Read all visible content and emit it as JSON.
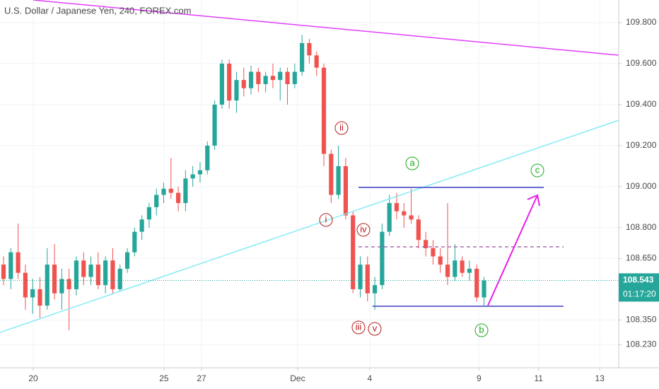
{
  "chart_data": {
    "type": "candlestick",
    "title": "U.S. Dollar / Japanese Yen, 240, FOREX.com",
    "up_color": "#26a69a",
    "down_color": "#ef5350",
    "open": [
      108.62,
      108.55,
      108.68,
      108.58,
      108.46,
      108.5,
      108.42,
      108.62,
      108.48,
      108.55,
      108.5,
      108.64,
      108.56,
      108.62,
      108.52,
      108.64,
      108.5,
      108.6,
      108.68,
      108.78,
      108.84,
      108.9,
      108.96,
      108.99,
      108.97,
      108.92,
      109.04,
      109.06,
      109.08,
      109.2,
      109.4,
      109.6,
      109.42,
      109.52,
      109.48,
      109.56,
      109.5,
      109.54,
      109.52,
      109.56,
      109.5,
      109.56,
      109.7,
      109.64,
      109.58,
      109.16,
      108.96,
      109.1,
      108.86,
      108.5,
      108.62,
      108.48,
      108.52,
      108.78,
      108.92,
      108.88,
      108.86,
      108.84,
      108.74,
      108.7,
      108.66,
      108.62,
      108.56,
      108.64,
      108.58,
      108.6,
      108.46
    ],
    "high": [
      108.66,
      108.7,
      108.82,
      108.62,
      108.55,
      108.56,
      108.7,
      108.72,
      108.6,
      108.6,
      108.66,
      108.68,
      108.66,
      108.68,
      108.66,
      108.7,
      108.62,
      108.7,
      108.8,
      108.86,
      108.92,
      108.99,
      109.02,
      109.14,
      109.0,
      109.08,
      109.1,
      109.12,
      109.22,
      109.42,
      109.62,
      109.62,
      109.56,
      109.58,
      109.59,
      109.58,
      109.56,
      109.6,
      109.58,
      109.58,
      109.6,
      109.74,
      109.72,
      109.66,
      109.6,
      109.18,
      109.2,
      109.14,
      108.88,
      108.66,
      108.66,
      108.56,
      108.82,
      108.96,
      108.97,
      108.92,
      108.99,
      108.86,
      108.78,
      108.74,
      108.7,
      108.92,
      108.72,
      108.66,
      108.64,
      108.62,
      108.56
    ],
    "low": [
      108.52,
      108.5,
      108.55,
      108.4,
      108.38,
      108.36,
      108.4,
      108.45,
      108.4,
      108.3,
      108.47,
      108.52,
      108.52,
      108.5,
      108.48,
      108.48,
      108.49,
      108.58,
      108.66,
      108.74,
      108.8,
      108.86,
      108.92,
      108.94,
      108.88,
      108.88,
      109.0,
      109.02,
      109.06,
      109.18,
      109.38,
      109.38,
      109.36,
      109.44,
      109.45,
      109.46,
      109.46,
      109.48,
      109.42,
      109.4,
      109.48,
      109.54,
      109.6,
      109.54,
      109.1,
      108.92,
      108.94,
      108.84,
      108.48,
      108.46,
      108.44,
      108.4,
      108.5,
      108.76,
      108.84,
      108.8,
      108.82,
      108.7,
      108.66,
      108.62,
      108.58,
      108.52,
      108.54,
      108.56,
      108.54,
      108.44,
      108.42
    ],
    "close": [
      108.55,
      108.68,
      108.58,
      108.46,
      108.5,
      108.42,
      108.62,
      108.48,
      108.55,
      108.5,
      108.64,
      108.56,
      108.62,
      108.52,
      108.64,
      108.5,
      108.6,
      108.68,
      108.78,
      108.84,
      108.9,
      108.96,
      108.99,
      108.97,
      108.92,
      109.04,
      109.06,
      109.08,
      109.2,
      109.4,
      109.6,
      109.42,
      109.52,
      109.48,
      109.56,
      109.5,
      109.54,
      109.52,
      109.56,
      109.5,
      109.56,
      109.7,
      109.64,
      109.58,
      109.16,
      108.96,
      109.1,
      108.86,
      108.5,
      108.62,
      108.48,
      108.52,
      108.78,
      108.92,
      108.88,
      108.86,
      108.84,
      108.74,
      108.7,
      108.66,
      108.62,
      108.56,
      108.64,
      108.58,
      108.6,
      108.46,
      108.543
    ],
    "xlim": [
      -0.485,
      84.5
    ],
    "xticks": [
      {
        "value": 4.08,
        "label": "20"
      },
      {
        "value": 22.04,
        "label": "25"
      },
      {
        "value": 27.2,
        "label": "27"
      },
      {
        "value": 40.4,
        "label": "Dec"
      },
      {
        "value": 50.3,
        "label": "4"
      },
      {
        "value": 65.3,
        "label": "9"
      },
      {
        "value": 73.5,
        "label": "11"
      },
      {
        "value": 81.9,
        "label": "13"
      }
    ],
    "ylim": [
      108.117,
      109.91
    ],
    "yticks": [
      {
        "value": 109.8,
        "label": "109.800"
      },
      {
        "value": 109.6,
        "label": "109.600"
      },
      {
        "value": 109.4,
        "label": "109.400"
      },
      {
        "value": 109.2,
        "label": "109.200"
      },
      {
        "value": 109.0,
        "label": "109.000"
      },
      {
        "value": 108.8,
        "label": "108.800"
      },
      {
        "value": 108.65,
        "label": "108.650"
      },
      {
        "value": 108.35,
        "label": "108.350"
      },
      {
        "value": 108.23,
        "label": "108.230"
      }
    ],
    "grid": true,
    "current_price": 108.543,
    "countdown": "01:17:20",
    "annotations": {
      "i": "i",
      "ii": "ii",
      "iii": "iii",
      "iv": "iv",
      "v": "v",
      "a": "a",
      "b": "b",
      "c": "c"
    }
  }
}
